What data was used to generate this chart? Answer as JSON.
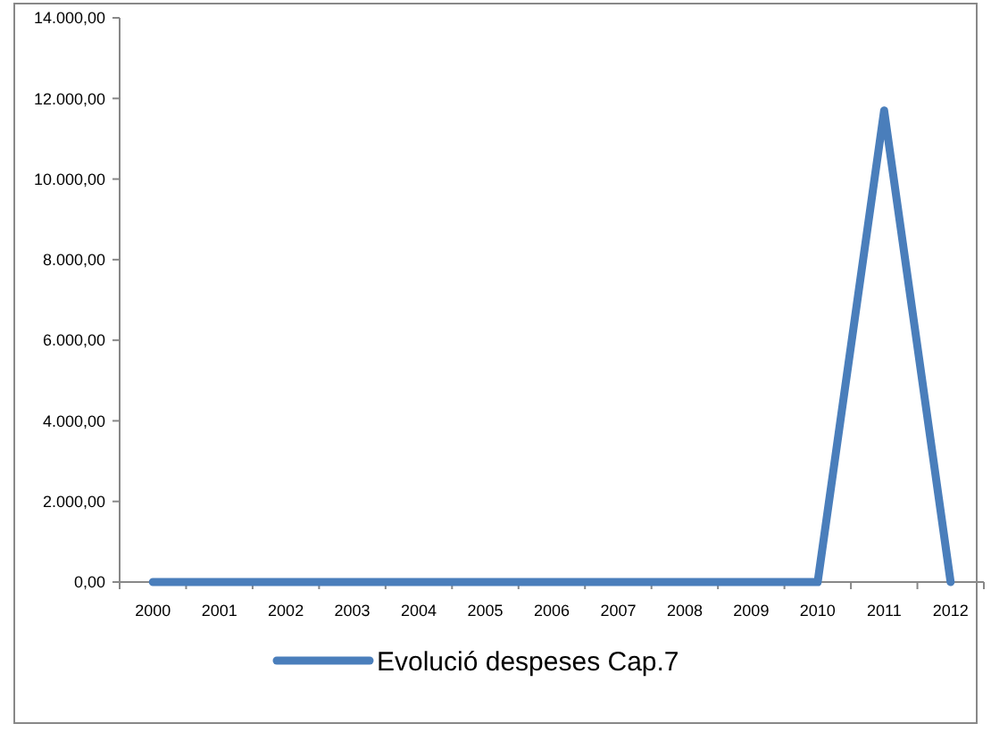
{
  "chart_data": {
    "type": "line",
    "categories": [
      "2000",
      "2001",
      "2002",
      "2003",
      "2004",
      "2005",
      "2006",
      "2007",
      "2008",
      "2009",
      "2010",
      "2011",
      "2012"
    ],
    "series": [
      {
        "name": "Evolució despeses Cap.7",
        "color": "#4a7ebb",
        "values": [
          0,
          0,
          0,
          0,
          0,
          0,
          0,
          0,
          0,
          0,
          0,
          11700,
          0
        ]
      }
    ],
    "ylim": [
      0,
      14000
    ],
    "yticks": [
      {
        "value": 0,
        "label": "0,00"
      },
      {
        "value": 2000,
        "label": "2.000,00"
      },
      {
        "value": 4000,
        "label": "4.000,00"
      },
      {
        "value": 6000,
        "label": "6.000,00"
      },
      {
        "value": 8000,
        "label": "8.000,00"
      },
      {
        "value": 10000,
        "label": "10.000,00"
      },
      {
        "value": 12000,
        "label": "12.000,00"
      },
      {
        "value": 14000,
        "label": "14.000,00"
      }
    ],
    "grid": false,
    "legend": "bottom",
    "marker": "none",
    "line_style": "solid"
  }
}
